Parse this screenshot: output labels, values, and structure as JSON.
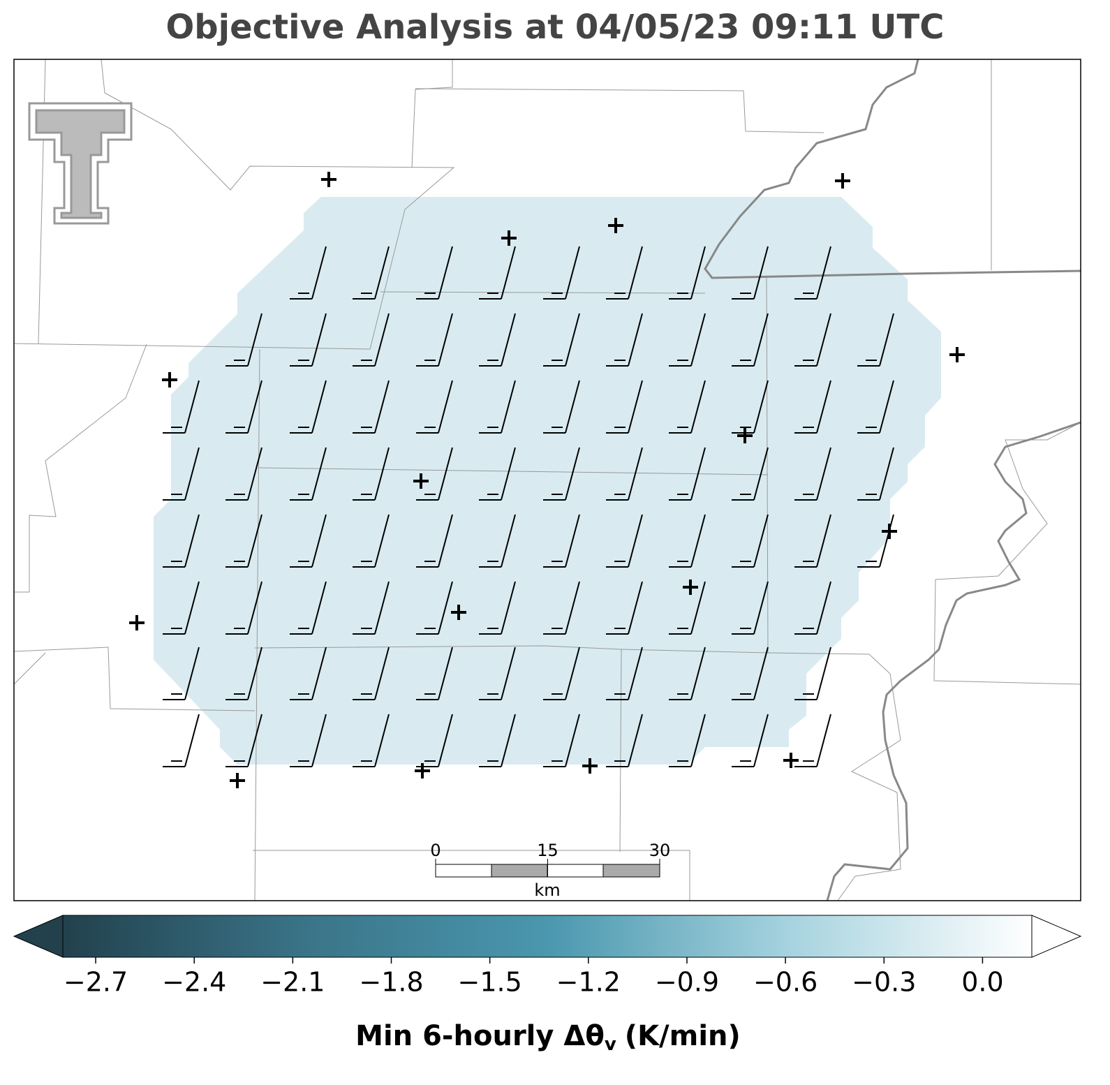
{
  "title": "Objective Analysis at 04/05/23 09:11 UTC",
  "scale_bar": {
    "ticks": [
      0,
      15,
      30
    ],
    "unit": "km"
  },
  "colorbar": {
    "label": "Min 6-hourly Δθ",
    "label_subscript": "v",
    "label_units": "(K/min)",
    "lim": [
      -2.8,
      0.15
    ],
    "ticks": [
      {
        "value": -2.7,
        "label": "−2.7"
      },
      {
        "value": -2.4,
        "label": "−2.4"
      },
      {
        "value": -2.1,
        "label": "−2.1"
      },
      {
        "value": -1.8,
        "label": "−1.8"
      },
      {
        "value": -1.5,
        "label": "−1.5"
      },
      {
        "value": -1.2,
        "label": "−1.2"
      },
      {
        "value": -0.9,
        "label": "−0.9"
      },
      {
        "value": -0.6,
        "label": "−0.6"
      },
      {
        "value": -0.3,
        "label": "−0.3"
      },
      {
        "value": 0,
        "label": "0.0"
      }
    ],
    "colors": [
      "#22414d",
      "#3a7488",
      "#4a97ae",
      "#a6d3df",
      "#ffffff"
    ]
  }
}
